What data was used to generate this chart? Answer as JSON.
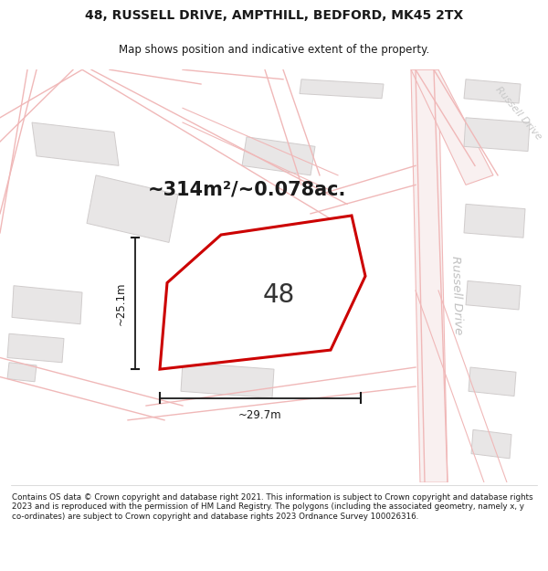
{
  "title_line1": "48, RUSSELL DRIVE, AMPTHILL, BEDFORD, MK45 2TX",
  "title_line2": "Map shows position and indicative extent of the property.",
  "area_text": "~314m²/~0.078ac.",
  "label_48": "48",
  "dim_width": "~29.7m",
  "dim_height": "~25.1m",
  "russell_drive_label": "Russell Drive",
  "russell_drive_label2": "Russell Drive",
  "footer_text": "Contains OS data © Crown copyright and database right 2021. This information is subject to Crown copyright and database rights 2023 and is reproduced with the permission of HM Land Registry. The polygons (including the associated geometry, namely x, y co-ordinates) are subject to Crown copyright and database rights 2023 Ordnance Survey 100026316.",
  "bg_color": "#ffffff",
  "map_bg": "#f9f8f8",
  "road_color": "#f0b8b8",
  "road_fill": "#f9f0f0",
  "building_fill": "#e8e6e6",
  "building_edge": "#d0cccc",
  "highlight_fill": "#ffffff",
  "highlight_edge": "#cc0000",
  "dim_color": "#1a1a1a",
  "title_color": "#1a1a1a",
  "footer_color": "#1a1a1a",
  "road_label_color": "#b0b0b0"
}
